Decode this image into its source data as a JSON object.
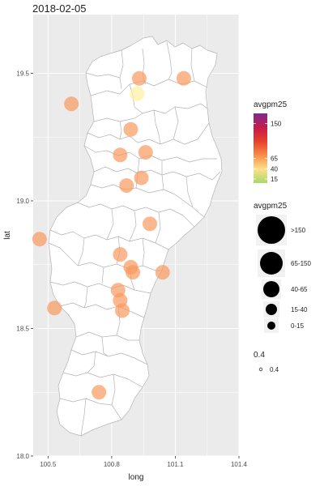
{
  "chart_data": {
    "type": "scatter",
    "title": "2018-02-05",
    "xlabel": "long",
    "ylabel": "lat",
    "xlim": [
      100.43,
      101.4
    ],
    "ylim": [
      18.0,
      19.73
    ],
    "x_ticks": [
      {
        "value": 100.5,
        "label": "100.5"
      },
      {
        "value": 100.8,
        "label": "100.8"
      },
      {
        "value": 101.1,
        "label": "101.1"
      },
      {
        "value": 101.4,
        "label": "101.4"
      }
    ],
    "y_ticks": [
      {
        "value": 18.0,
        "label": "18.0"
      },
      {
        "value": 18.5,
        "label": "18.5"
      },
      {
        "value": 19.0,
        "label": "19.0"
      },
      {
        "value": 19.5,
        "label": "19.5"
      }
    ],
    "grid": true,
    "colors": {
      "panel": "#ebebeb",
      "gridline": "#ffffff",
      "map_fill": "#ffffff",
      "map_border": "#b3b3b3",
      "point_fill": "#fdae6b"
    },
    "points": [
      {
        "long": 100.93,
        "lat": 19.48,
        "avgpm25": 45
      },
      {
        "long": 101.14,
        "lat": 19.48,
        "avgpm25": 45
      },
      {
        "long": 100.92,
        "lat": 19.42,
        "avgpm25": 22
      },
      {
        "long": 100.61,
        "lat": 19.38,
        "avgpm25": 45
      },
      {
        "long": 100.89,
        "lat": 19.28,
        "avgpm25": 45
      },
      {
        "long": 100.96,
        "lat": 19.19,
        "avgpm25": 45
      },
      {
        "long": 100.84,
        "lat": 19.18,
        "avgpm25": 45
      },
      {
        "long": 100.94,
        "lat": 19.09,
        "avgpm25": 45
      },
      {
        "long": 100.87,
        "lat": 19.06,
        "avgpm25": 45
      },
      {
        "long": 100.98,
        "lat": 18.91,
        "avgpm25": 45
      },
      {
        "long": 100.46,
        "lat": 18.85,
        "avgpm25": 45
      },
      {
        "long": 100.84,
        "lat": 18.79,
        "avgpm25": 45
      },
      {
        "long": 100.89,
        "lat": 18.74,
        "avgpm25": 45
      },
      {
        "long": 100.9,
        "lat": 18.72,
        "avgpm25": 45
      },
      {
        "long": 101.04,
        "lat": 18.72,
        "avgpm25": 45
      },
      {
        "long": 100.83,
        "lat": 18.65,
        "avgpm25": 45
      },
      {
        "long": 100.84,
        "lat": 18.61,
        "avgpm25": 45
      },
      {
        "long": 100.53,
        "lat": 18.58,
        "avgpm25": 45
      },
      {
        "long": 100.85,
        "lat": 18.57,
        "avgpm25": 45
      },
      {
        "long": 100.74,
        "lat": 18.25,
        "avgpm25": 45
      }
    ],
    "legend_color": {
      "title": "avgpm25",
      "ticks": [
        {
          "value": 150,
          "label": "150"
        },
        {
          "value": 65,
          "label": "65"
        },
        {
          "value": 40,
          "label": "40"
        },
        {
          "value": 15,
          "label": "15"
        }
      ],
      "gradient": [
        "#7b2d8e",
        "#c51b4b",
        "#e8402b",
        "#f88d4a",
        "#fee08b",
        "#a6d96a"
      ]
    },
    "legend_size": {
      "title": "avgpm25",
      "items": [
        {
          "label": ">150"
        },
        {
          "label": "65-150"
        },
        {
          "label": "40-65"
        },
        {
          "label": "15-40"
        },
        {
          "label": "0-15"
        }
      ]
    },
    "legend_alpha": {
      "title": "0.4",
      "items": [
        {
          "label": "0.4"
        }
      ]
    }
  }
}
